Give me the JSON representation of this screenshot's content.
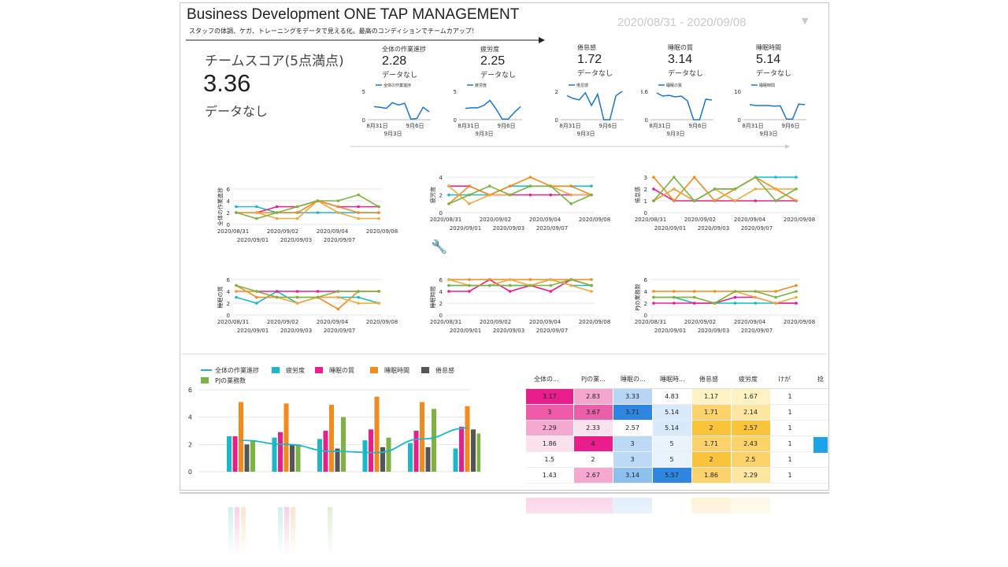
{
  "header": {
    "title": "Business Development ONE TAP MANAGEMENT",
    "subtitle": "スタッフの体調、ケガ、トレーニングをデータで見える化。最高のコンディションでチームカアップ！",
    "date_range": "2020/08/31 - 2020/09/08",
    "date_caret_icon": "chevron-down-icon"
  },
  "team_score": {
    "label": "チームスコア(5点満点)",
    "value": "3.36",
    "sub": "データなし"
  },
  "kpis": [
    {
      "label": "全体の作業進捗",
      "value": "2.28",
      "sub": "データなし",
      "legend": "全体の作業進捗",
      "ymax": "5",
      "values": [
        2.3,
        2.2,
        2.0,
        3.0,
        2.6,
        2.9,
        0.1,
        0.2,
        2.2,
        1.4
      ]
    },
    {
      "label": "疲労度",
      "value": "2.25",
      "sub": "データなし",
      "legend": "疲労度",
      "ymax": "5",
      "values": [
        2.0,
        2.1,
        2.1,
        2.5,
        3.4,
        1.9,
        0.1,
        0.1,
        1.3,
        2.3
      ]
    },
    {
      "label": "倦怠感",
      "value": "1.72",
      "sub": "データなし",
      "legend": "倦怠感",
      "ymax": "2",
      "values": [
        1.7,
        1.5,
        1.4,
        1.9,
        1.0,
        1.8,
        0.0,
        0.0,
        1.7,
        2.0
      ]
    },
    {
      "label": "睡眠の質",
      "value": "3.14",
      "sub": "データなし",
      "legend": "睡眠の質",
      "ymax": "3.6",
      "values": [
        3.4,
        3.0,
        3.1,
        2.9,
        3.0,
        2.4,
        0.0,
        0.0,
        2.6,
        2.5
      ]
    },
    {
      "label": "睡眠時間",
      "value": "5.14",
      "sub": "データなし",
      "legend": "睡眠時間",
      "ymax": "10",
      "values": [
        5.3,
        5.0,
        5.0,
        5.0,
        4.8,
        4.9,
        0.2,
        0.2,
        5.5,
        5.3
      ]
    }
  ],
  "kpi_axis": {
    "zero": "0",
    "x1": "8月31日",
    "x2": "9月6日",
    "x3": "9月3日"
  },
  "line_charts": [
    {
      "ylabel": "全体の作業進捗",
      "yticks": [
        "0",
        "2",
        "4",
        "6"
      ],
      "ymax": 6,
      "series": [
        {
          "color": "#1ab8c8",
          "values": [
            3,
            3,
            2,
            2,
            2,
            2,
            2,
            2
          ]
        },
        {
          "color": "#e91e8c",
          "values": [
            2,
            2,
            3,
            3,
            4,
            3,
            3,
            3
          ]
        },
        {
          "color": "#f28a1e",
          "values": [
            2,
            2,
            2,
            2,
            4,
            3,
            2,
            2
          ]
        },
        {
          "color": "#f2a93b",
          "values": [
            2,
            2,
            1,
            1,
            4,
            2,
            1,
            1
          ]
        },
        {
          "color": "#7cb342",
          "values": [
            2,
            1,
            2,
            3,
            4,
            4,
            5,
            3
          ]
        }
      ]
    },
    {
      "ylabel": "疲労度",
      "yticks": [
        "0",
        "2",
        "4"
      ],
      "ymax": 4,
      "series": [
        {
          "color": "#1ab8c8",
          "values": [
            2,
            2,
            2,
            3,
            3,
            3,
            3,
            3
          ]
        },
        {
          "color": "#e91e8c",
          "values": [
            3,
            3,
            2,
            2,
            2,
            2,
            2,
            2
          ]
        },
        {
          "color": "#f28a1e",
          "values": [
            1,
            3,
            2,
            3,
            4,
            3,
            3,
            2
          ]
        },
        {
          "color": "#f2a93b",
          "values": [
            3,
            1,
            2,
            2,
            3,
            3,
            2,
            2
          ]
        },
        {
          "color": "#7cb342",
          "values": [
            1,
            2,
            3,
            2,
            3,
            3,
            1,
            2
          ]
        }
      ]
    },
    {
      "ylabel": "倦怠感",
      "yticks": [
        "0",
        "1",
        "2",
        "3"
      ],
      "ymax": 3,
      "series": [
        {
          "color": "#1ab8c8",
          "values": [
            1,
            2,
            1,
            2,
            2,
            3,
            3,
            3
          ]
        },
        {
          "color": "#e91e8c",
          "values": [
            2,
            1,
            1,
            1,
            1,
            1,
            1,
            1
          ]
        },
        {
          "color": "#f28a1e",
          "values": [
            3,
            1,
            3,
            1,
            2,
            3,
            2,
            1
          ]
        },
        {
          "color": "#f2a93b",
          "values": [
            1,
            2,
            1,
            2,
            1,
            2,
            2,
            2
          ]
        },
        {
          "color": "#7cb342",
          "values": [
            1,
            3,
            1,
            2,
            2,
            3,
            1,
            2
          ]
        }
      ]
    },
    {
      "ylabel": "睡眠の質",
      "yticks": [
        "0",
        "2",
        "4",
        "6"
      ],
      "ymax": 6,
      "series": [
        {
          "color": "#1ab8c8",
          "values": [
            3,
            2,
            4,
            2,
            3,
            3,
            3,
            2
          ]
        },
        {
          "color": "#e91e8c",
          "values": [
            4,
            4,
            4,
            4,
            4,
            4,
            4,
            4
          ]
        },
        {
          "color": "#f28a1e",
          "values": [
            5,
            3,
            3,
            3,
            3,
            1,
            4,
            4
          ]
        },
        {
          "color": "#f2a93b",
          "values": [
            4,
            4,
            3,
            2,
            3,
            3,
            2,
            2
          ]
        },
        {
          "color": "#7cb342",
          "values": [
            5,
            4,
            3,
            3,
            3,
            4,
            4,
            4
          ]
        }
      ]
    },
    {
      "ylabel": "睡眠時間",
      "yticks": [
        "0",
        "2",
        "4",
        "6"
      ],
      "ymax": 6,
      "series": [
        {
          "color": "#1ab8c8",
          "values": [
            5,
            5,
            5,
            5,
            5,
            6,
            5,
            5
          ]
        },
        {
          "color": "#e91e8c",
          "values": [
            4,
            4,
            6,
            4,
            5,
            4,
            6,
            5
          ]
        },
        {
          "color": "#f28a1e",
          "values": [
            6,
            6,
            6,
            6,
            6,
            6,
            6,
            6
          ]
        },
        {
          "color": "#f2a93b",
          "values": [
            6,
            5,
            5,
            6,
            5,
            6,
            5,
            4
          ]
        },
        {
          "color": "#7cb342",
          "values": [
            5,
            5,
            5,
            5,
            5,
            5,
            6,
            5
          ]
        }
      ]
    },
    {
      "ylabel": "PJの業務数",
      "yticks": [
        "0",
        "2",
        "4",
        "6"
      ],
      "ymax": 6,
      "series": [
        {
          "color": "#1ab8c8",
          "values": [
            3,
            3,
            2,
            2,
            2,
            2,
            2,
            2
          ]
        },
        {
          "color": "#e91e8c",
          "values": [
            2,
            2,
            2,
            2,
            3,
            3,
            2,
            2
          ]
        },
        {
          "color": "#f28a1e",
          "values": [
            4,
            4,
            4,
            4,
            4,
            4,
            4,
            5
          ]
        },
        {
          "color": "#f2a93b",
          "values": [
            3,
            3,
            3,
            2,
            4,
            3,
            2,
            3
          ]
        },
        {
          "color": "#7cb342",
          "values": [
            3,
            3,
            3,
            2,
            4,
            4,
            3,
            4
          ]
        }
      ]
    }
  ],
  "line_xlabels": {
    "top": [
      "2020/08/31",
      "2020/09/02",
      "2020/09/04",
      "2020/09/08"
    ],
    "bottom": [
      "2020/09/01",
      "2020/09/03",
      "2020/09/07"
    ]
  },
  "combo_chart": {
    "legend": [
      {
        "name": "全体の作業進捗",
        "color": "#1ab8c8",
        "kind": "line"
      },
      {
        "name": "疲労度",
        "color": "#1ab8c8",
        "kind": "box"
      },
      {
        "name": "睡眠の質",
        "color": "#e91e8c",
        "kind": "box"
      },
      {
        "name": "睡眠時間",
        "color": "#f28a1e",
        "kind": "box"
      },
      {
        "name": "倦怠感",
        "color": "#555555",
        "kind": "box"
      },
      {
        "name": "PJの業務数",
        "color": "#7cb342",
        "kind": "box"
      }
    ],
    "yticks": [
      "0",
      "2",
      "4",
      "6"
    ],
    "ymax": 6,
    "groups": [
      {
        "bars": [
          2.6,
          2.6,
          5.1,
          2.0,
          2.3
        ],
        "line": 2.3
      },
      {
        "bars": [
          2.5,
          2.9,
          5.0,
          2.0,
          2.0
        ],
        "line": 2.0
      },
      {
        "bars": [
          2.4,
          3.0,
          4.9,
          1.7,
          4.0
        ],
        "line": 1.5
      },
      {
        "bars": [
          2.3,
          3.1,
          5.5,
          1.8,
          2.5
        ],
        "line": 1.4
      },
      {
        "bars": [
          2.1,
          3.0,
          5.1,
          1.8,
          4.6
        ],
        "line": 2.4
      },
      {
        "bars": [
          1.7,
          3.3,
          4.8,
          3.1,
          2.8
        ],
        "line": 3.2
      }
    ]
  },
  "heatmap": {
    "columns": [
      "全体の...",
      "PJの業...",
      "睡眠の...",
      "睡眠時...",
      "倦怠感",
      "疲労度",
      "けが",
      "捻"
    ],
    "rows": [
      [
        "3.17",
        "2.83",
        "3.33",
        "4.83",
        "1.17",
        "1.67",
        "1"
      ],
      [
        "3",
        "3.67",
        "3.71",
        "5.14",
        "1.71",
        "2.14",
        "1"
      ],
      [
        "2.29",
        "2.33",
        "2.57",
        "5.14",
        "2",
        "2.57",
        "1"
      ],
      [
        "1.86",
        "4",
        "3",
        "5",
        "1.71",
        "2.43",
        "1"
      ],
      [
        "1.5",
        "2",
        "3",
        "5",
        "2",
        "2.5",
        "1"
      ],
      [
        "1.43",
        "2.67",
        "3.14",
        "5.57",
        "1.86",
        "2.29",
        "1"
      ]
    ],
    "colors": [
      [
        "#e91e8c",
        "#f4a6cf",
        "#b7d6f5",
        "#ffffff",
        "#fff3c4",
        "#fff3c4",
        "#ffffff"
      ],
      [
        "#f05aa8",
        "#e95fa9",
        "#2f86e0",
        "#d7e9fb",
        "#fbd36a",
        "#fce6a0",
        "#ffffff"
      ],
      [
        "#f6a9d0",
        "#fbe1ee",
        "#ffffff",
        "#d7e9fb",
        "#f9c43a",
        "#f9c43a",
        "#ffffff"
      ],
      [
        "#fbe1ee",
        "#e91e8c",
        "#bcd9f6",
        "#e9f3fd",
        "#fbd36a",
        "#fbd36a",
        "#ffffff"
      ],
      [
        "#ffffff",
        "#ffffff",
        "#bcd9f6",
        "#e9f3fd",
        "#f9c43a",
        "#fbd36a",
        "#ffffff"
      ],
      [
        "#ffffff",
        "#f6a9d0",
        "#8ec0ef",
        "#2f86e0",
        "#fbd36a",
        "#fce6a0",
        "#ffffff"
      ]
    ]
  },
  "tools": {
    "wrench_icon": "wrench-icon"
  }
}
